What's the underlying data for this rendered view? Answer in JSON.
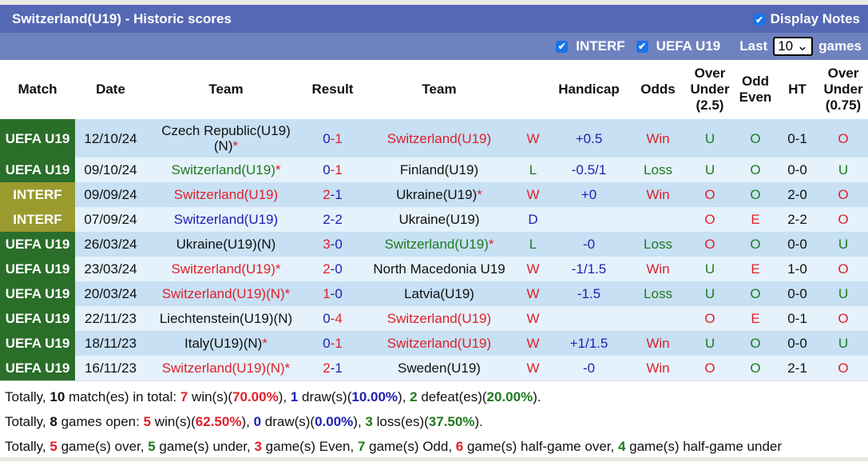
{
  "header": {
    "title": "Switzerland(U19) - Historic scores",
    "display_notes": "Display Notes"
  },
  "filters": {
    "interf": "INTERF",
    "uefa": "UEFA U19",
    "last": "Last",
    "count": "10",
    "games": "games"
  },
  "columns": [
    "Match",
    "Date",
    "Team",
    "Result",
    "Team",
    "",
    "Handicap",
    "Odds",
    "Over Under (2.5)",
    "Odd Even",
    "HT",
    "Over Under (0.75)"
  ],
  "colors": {
    "UEFA U19": "#2a6e2a",
    "INTERF": "#9a9a2e"
  },
  "rows": [
    {
      "comp": "UEFA U19",
      "date": "12/10/24",
      "home": "Czech Republic(U19)(N)",
      "home_star": true,
      "home_c": "black",
      "hs": "0",
      "hs_c": "blue",
      "as": "1",
      "as_c": "red",
      "away": "Switzerland(U19)",
      "away_star": false,
      "away_c": "red",
      "res": "W",
      "res_c": "red",
      "hcap": "+0.5",
      "odds": "Win",
      "odds_c": "red",
      "ou": "U",
      "ou_c": "green",
      "oe": "O",
      "oe_c": "green",
      "ht": "0-1",
      "ou2": "O",
      "ou2_c": "red"
    },
    {
      "comp": "UEFA U19",
      "date": "09/10/24",
      "home": "Switzerland(U19)",
      "home_star": true,
      "home_c": "green",
      "hs": "0",
      "hs_c": "blue",
      "as": "1",
      "as_c": "red",
      "away": "Finland(U19)",
      "away_star": false,
      "away_c": "black",
      "res": "L",
      "res_c": "green",
      "hcap": "-0.5/1",
      "odds": "Loss",
      "odds_c": "green",
      "ou": "U",
      "ou_c": "green",
      "oe": "O",
      "oe_c": "green",
      "ht": "0-0",
      "ou2": "U",
      "ou2_c": "green"
    },
    {
      "comp": "INTERF",
      "date": "09/09/24",
      "home": "Switzerland(U19)",
      "home_star": false,
      "home_c": "red",
      "hs": "2",
      "hs_c": "red",
      "as": "1",
      "as_c": "blue",
      "away": "Ukraine(U19)",
      "away_star": true,
      "away_c": "black",
      "res": "W",
      "res_c": "red",
      "hcap": "+0",
      "odds": "Win",
      "odds_c": "red",
      "ou": "O",
      "ou_c": "red",
      "oe": "O",
      "oe_c": "green",
      "ht": "2-0",
      "ou2": "O",
      "ou2_c": "red"
    },
    {
      "comp": "INTERF",
      "date": "07/09/24",
      "home": "Switzerland(U19)",
      "home_star": false,
      "home_c": "blue",
      "hs": "2",
      "hs_c": "blue",
      "as": "2",
      "as_c": "blue",
      "away": "Ukraine(U19)",
      "away_star": false,
      "away_c": "black",
      "res": "D",
      "res_c": "blue",
      "hcap": "",
      "odds": "",
      "odds_c": "black",
      "ou": "O",
      "ou_c": "red",
      "oe": "E",
      "oe_c": "red",
      "ht": "2-2",
      "ou2": "O",
      "ou2_c": "red"
    },
    {
      "comp": "UEFA U19",
      "date": "26/03/24",
      "home": "Ukraine(U19)(N)",
      "home_star": false,
      "home_c": "black",
      "hs": "3",
      "hs_c": "red",
      "as": "0",
      "as_c": "blue",
      "away": "Switzerland(U19)",
      "away_star": true,
      "away_c": "green",
      "res": "L",
      "res_c": "green",
      "hcap": "-0",
      "odds": "Loss",
      "odds_c": "green",
      "ou": "O",
      "ou_c": "red",
      "oe": "O",
      "oe_c": "green",
      "ht": "0-0",
      "ou2": "U",
      "ou2_c": "green"
    },
    {
      "comp": "UEFA U19",
      "date": "23/03/24",
      "home": "Switzerland(U19)",
      "home_star": true,
      "home_c": "red",
      "hs": "2",
      "hs_c": "red",
      "as": "0",
      "as_c": "blue",
      "away": "North Macedonia U19",
      "away_star": false,
      "away_c": "black",
      "res": "W",
      "res_c": "red",
      "hcap": "-1/1.5",
      "odds": "Win",
      "odds_c": "red",
      "ou": "U",
      "ou_c": "green",
      "oe": "E",
      "oe_c": "red",
      "ht": "1-0",
      "ou2": "O",
      "ou2_c": "red"
    },
    {
      "comp": "UEFA U19",
      "date": "20/03/24",
      "home": "Switzerland(U19)(N)",
      "home_star": true,
      "home_c": "red",
      "hs": "1",
      "hs_c": "red",
      "as": "0",
      "as_c": "blue",
      "away": "Latvia(U19)",
      "away_star": false,
      "away_c": "black",
      "res": "W",
      "res_c": "red",
      "hcap": "-1.5",
      "odds": "Loss",
      "odds_c": "green",
      "ou": "U",
      "ou_c": "green",
      "oe": "O",
      "oe_c": "green",
      "ht": "0-0",
      "ou2": "U",
      "ou2_c": "green"
    },
    {
      "comp": "UEFA U19",
      "date": "22/11/23",
      "home": "Liechtenstein(U19)(N)",
      "home_star": false,
      "home_c": "black",
      "hs": "0",
      "hs_c": "blue",
      "as": "4",
      "as_c": "red",
      "away": "Switzerland(U19)",
      "away_star": false,
      "away_c": "red",
      "res": "W",
      "res_c": "red",
      "hcap": "",
      "odds": "",
      "odds_c": "black",
      "ou": "O",
      "ou_c": "red",
      "oe": "E",
      "oe_c": "red",
      "ht": "0-1",
      "ou2": "O",
      "ou2_c": "red"
    },
    {
      "comp": "UEFA U19",
      "date": "18/11/23",
      "home": "Italy(U19)(N)",
      "home_star": true,
      "home_c": "black",
      "hs": "0",
      "hs_c": "blue",
      "as": "1",
      "as_c": "red",
      "away": "Switzerland(U19)",
      "away_star": false,
      "away_c": "red",
      "res": "W",
      "res_c": "red",
      "hcap": "+1/1.5",
      "odds": "Win",
      "odds_c": "red",
      "ou": "U",
      "ou_c": "green",
      "oe": "O",
      "oe_c": "green",
      "ht": "0-0",
      "ou2": "U",
      "ou2_c": "green"
    },
    {
      "comp": "UEFA U19",
      "date": "16/11/23",
      "home": "Switzerland(U19)(N)",
      "home_star": true,
      "home_c": "red",
      "hs": "2",
      "hs_c": "red",
      "as": "1",
      "as_c": "blue",
      "away": "Sweden(U19)",
      "away_star": false,
      "away_c": "black",
      "res": "W",
      "res_c": "red",
      "hcap": "-0",
      "odds": "Win",
      "odds_c": "red",
      "ou": "O",
      "ou_c": "red",
      "oe": "O",
      "oe_c": "green",
      "ht": "2-1",
      "ou2": "O",
      "ou2_c": "red"
    }
  ],
  "summary": [
    [
      [
        "Totally, ",
        "black",
        0
      ],
      [
        "10",
        "black",
        1
      ],
      [
        " match(es) in total: ",
        "black",
        0
      ],
      [
        "7",
        "red",
        1
      ],
      [
        " win(s)(",
        "black",
        0
      ],
      [
        "70.00%",
        "red",
        1
      ],
      [
        "), ",
        "black",
        0
      ],
      [
        "1",
        "blue",
        1
      ],
      [
        " draw(s)(",
        "black",
        0
      ],
      [
        "10.00%",
        "blue",
        1
      ],
      [
        "), ",
        "black",
        0
      ],
      [
        "2",
        "green",
        1
      ],
      [
        " defeat(es)(",
        "black",
        0
      ],
      [
        "20.00%",
        "green",
        1
      ],
      [
        ").",
        "black",
        0
      ]
    ],
    [
      [
        "Totally, ",
        "black",
        0
      ],
      [
        "8",
        "black",
        1
      ],
      [
        " games open: ",
        "black",
        0
      ],
      [
        "5",
        "red",
        1
      ],
      [
        " win(s)(",
        "black",
        0
      ],
      [
        "62.50%",
        "red",
        1
      ],
      [
        "), ",
        "black",
        0
      ],
      [
        "0",
        "blue",
        1
      ],
      [
        " draw(s)(",
        "black",
        0
      ],
      [
        "0.00%",
        "blue",
        1
      ],
      [
        "), ",
        "black",
        0
      ],
      [
        "3",
        "green",
        1
      ],
      [
        " loss(es)(",
        "black",
        0
      ],
      [
        "37.50%",
        "green",
        1
      ],
      [
        ").",
        "black",
        0
      ]
    ],
    [
      [
        "Totally, ",
        "black",
        0
      ],
      [
        "5",
        "red",
        1
      ],
      [
        " game(s) over, ",
        "black",
        0
      ],
      [
        "5",
        "green",
        1
      ],
      [
        " game(s) under, ",
        "black",
        0
      ],
      [
        "3",
        "red",
        1
      ],
      [
        " game(s) Even, ",
        "black",
        0
      ],
      [
        "7",
        "green",
        1
      ],
      [
        " game(s) Odd, ",
        "black",
        0
      ],
      [
        "6",
        "red",
        1
      ],
      [
        " game(s) half-game over, ",
        "black",
        0
      ],
      [
        "4",
        "green",
        1
      ],
      [
        " game(s) half-game under",
        "black",
        0
      ]
    ]
  ]
}
